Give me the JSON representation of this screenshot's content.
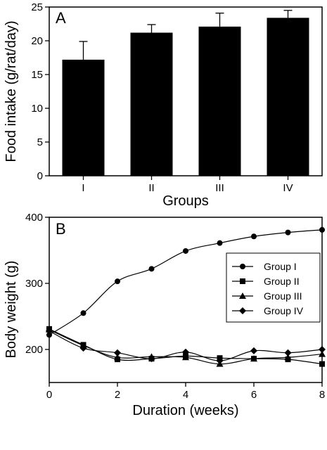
{
  "chart_data": [
    {
      "type": "bar",
      "panel_label": "A",
      "categories": [
        "I",
        "II",
        "III",
        "IV"
      ],
      "values": [
        17.2,
        21.2,
        22.1,
        23.4
      ],
      "errors": [
        2.7,
        1.2,
        2.0,
        1.1
      ],
      "xlabel": "Groups",
      "ylabel": "Food intake (g/rat/day)",
      "ylim": [
        0,
        25
      ],
      "yticks": [
        0,
        5,
        10,
        15,
        20,
        25
      ],
      "bar_color": "#000000",
      "grid": false
    },
    {
      "type": "line",
      "panel_label": "B",
      "x": [
        0,
        1,
        2,
        3,
        4,
        5,
        6,
        7,
        8
      ],
      "xticks": [
        0,
        2,
        4,
        6,
        8
      ],
      "series": [
        {
          "name": "Group I",
          "marker": "circle",
          "values": [
            222,
            255,
            303,
            322,
            349,
            361,
            371,
            377,
            381
          ]
        },
        {
          "name": "Group II",
          "marker": "square",
          "values": [
            231,
            207,
            185,
            186,
            190,
            187,
            186,
            185,
            178
          ]
        },
        {
          "name": "Group III",
          "marker": "triangle",
          "values": [
            230,
            206,
            188,
            189,
            188,
            178,
            186,
            188,
            193
          ]
        },
        {
          "name": "Group IV",
          "marker": "diamond",
          "values": [
            228,
            202,
            195,
            186,
            196,
            183,
            198,
            195,
            200
          ]
        }
      ],
      "xlabel": "Duration (weeks)",
      "ylabel": "Body weight (g)",
      "xlim": [
        0,
        8
      ],
      "ylim": [
        150,
        400
      ],
      "yticks": [
        200,
        300,
        400
      ],
      "legend_position": "right",
      "grid": false
    }
  ]
}
